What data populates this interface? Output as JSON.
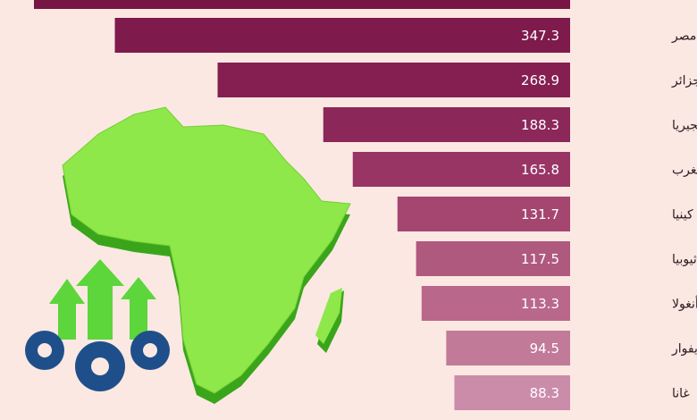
{
  "chart_data": {
    "type": "bar",
    "orientation": "horizontal",
    "categories": [
      "مصر",
      "الجزائر",
      "نيجيريا",
      "المغرب",
      "كينيا",
      "إثيوبيا",
      "أنغولا",
      "كوت ديفوار",
      "غانا"
    ],
    "values": [
      347.3,
      268.9,
      188.3,
      165.8,
      131.7,
      117.5,
      113.3,
      94.5,
      88.3
    ],
    "colors": [
      "#7e1a4c",
      "#851f52",
      "#8c275a",
      "#983565",
      "#a44670",
      "#b0597e",
      "#b9688b",
      "#c27a99",
      "#cb8caa"
    ]
  }
}
